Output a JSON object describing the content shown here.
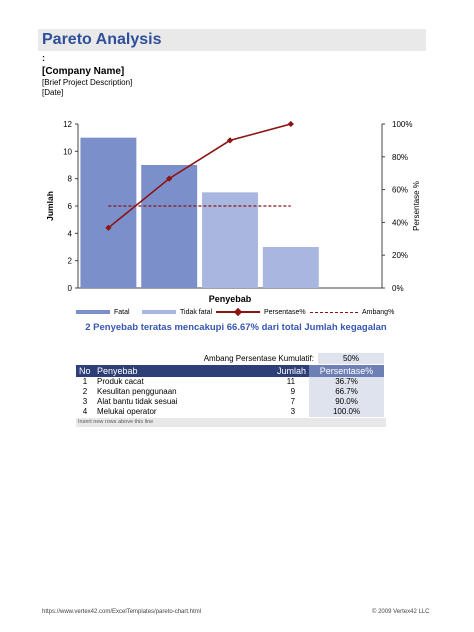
{
  "header": {
    "title": "Pareto Analysis",
    "colon": ":",
    "company": "[Company Name]",
    "description": "[Brief Project Description]",
    "date": "[Date]"
  },
  "chart_data": {
    "type": "bar",
    "categories": [
      "Produk cacat",
      "Kesulitan penggunaan",
      "Alat bantu tidak sesuai",
      "Melukai operator"
    ],
    "series": [
      {
        "name": "Fatal",
        "values": [
          11,
          9,
          null,
          null
        ],
        "color": "#7b8fcb"
      },
      {
        "name": "Tidak fatal",
        "values": [
          null,
          null,
          7,
          3
        ],
        "color": "#a9b6df"
      },
      {
        "name": "Persentase%",
        "type": "line",
        "axis": "right",
        "values": [
          36.7,
          66.7,
          90.0,
          100.0
        ],
        "color": "#8b1414"
      },
      {
        "name": "Ambang%",
        "type": "line",
        "dashed": true,
        "axis": "right",
        "values": [
          50,
          50,
          50,
          50
        ],
        "color": "#8b1414"
      }
    ],
    "xlabel": "Penyebab",
    "ylabel": "Jumlah",
    "y2label": "Persentase %",
    "ylim": [
      0,
      12
    ],
    "yticks": [
      "0",
      "2",
      "4",
      "6",
      "8",
      "10",
      "12"
    ],
    "y2lim": [
      0,
      100
    ],
    "y2ticks": [
      "0%",
      "20%",
      "40%",
      "60%",
      "80%",
      "100%"
    ],
    "grid": false,
    "legend": "bottom"
  },
  "summary": "2 Penyebab teratas mencakupi 66.67% dari total Jumlah kegagalan",
  "threshold": {
    "label": "Ambang Persentase Kumulatif:",
    "value": "50%"
  },
  "table": {
    "headers": [
      "No",
      "Penyebab",
      "Jumlah",
      "Persentase%"
    ],
    "rows": [
      [
        "1",
        "Produk cacat",
        "11",
        "36.7%"
      ],
      [
        "2",
        "Kesulitan penggunaan",
        "9",
        "66.7%"
      ],
      [
        "3",
        "Alat bantu tidak sesuai",
        "7",
        "90.0%"
      ],
      [
        "4",
        "Melukai operator",
        "3",
        "100.0%"
      ]
    ],
    "insert_note": "Insert new rows above this line"
  },
  "footer": {
    "url": "https://www.vertex42.com/ExcelTemplates/pareto-chart.html",
    "copyright": "© 2009 Vertex42 LLC"
  }
}
